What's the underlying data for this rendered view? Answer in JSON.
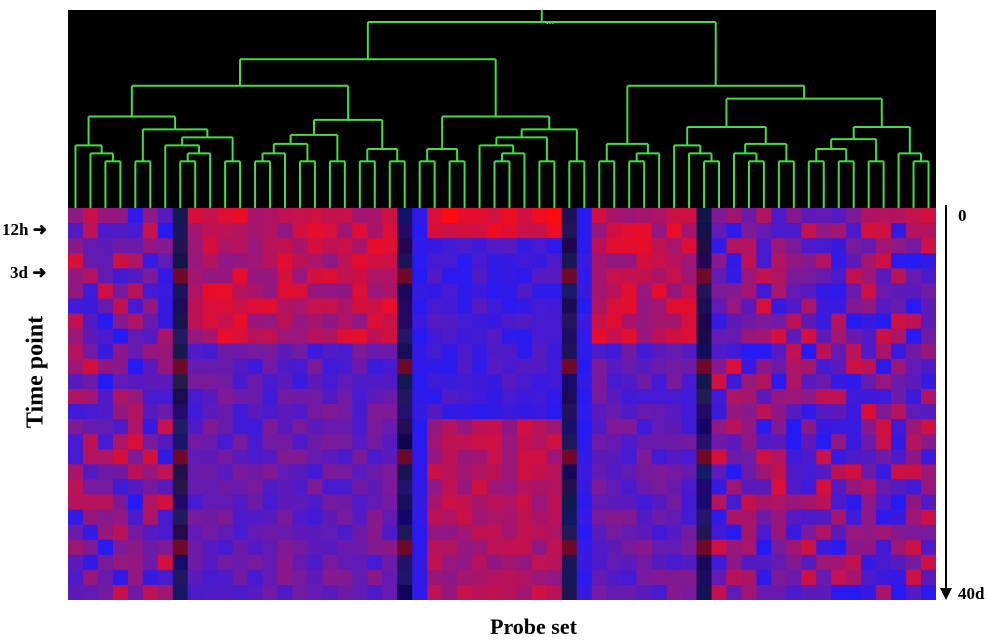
{
  "chart_data": {
    "type": "heatmap",
    "title": "",
    "xlabel": "Probe set",
    "ylabel": "Time point",
    "left_markers": [
      {
        "label": "12h",
        "row": 2
      },
      {
        "label": "3d",
        "row": 4
      }
    ],
    "right_axis": {
      "start_label": "0",
      "end_label": "40d"
    },
    "n_rows": 26,
    "n_cols": 58,
    "colormap": {
      "low": "#1a1aff",
      "mid": "#7a1a9a",
      "high": "#ff0a10",
      "missing": "#150a50"
    },
    "dendrogram_color": "#44dd44",
    "dendrogram_background": "#000000",
    "dark_columns": [
      7,
      22,
      33,
      42
    ],
    "cluster_groups": [
      {
        "cols": [
          0,
          7
        ],
        "profile": "mixed"
      },
      {
        "cols": [
          8,
          21
        ],
        "profile": "red_early"
      },
      {
        "cols": [
          22,
          23
        ],
        "profile": "blue"
      },
      {
        "cols": [
          24,
          32
        ],
        "profile": "blue_early_red_late"
      },
      {
        "cols": [
          33,
          34
        ],
        "profile": "blue"
      },
      {
        "cols": [
          35,
          41
        ],
        "profile": "red_early"
      },
      {
        "cols": [
          42,
          57
        ],
        "profile": "mixed"
      }
    ],
    "dendrogram_note": "..."
  }
}
